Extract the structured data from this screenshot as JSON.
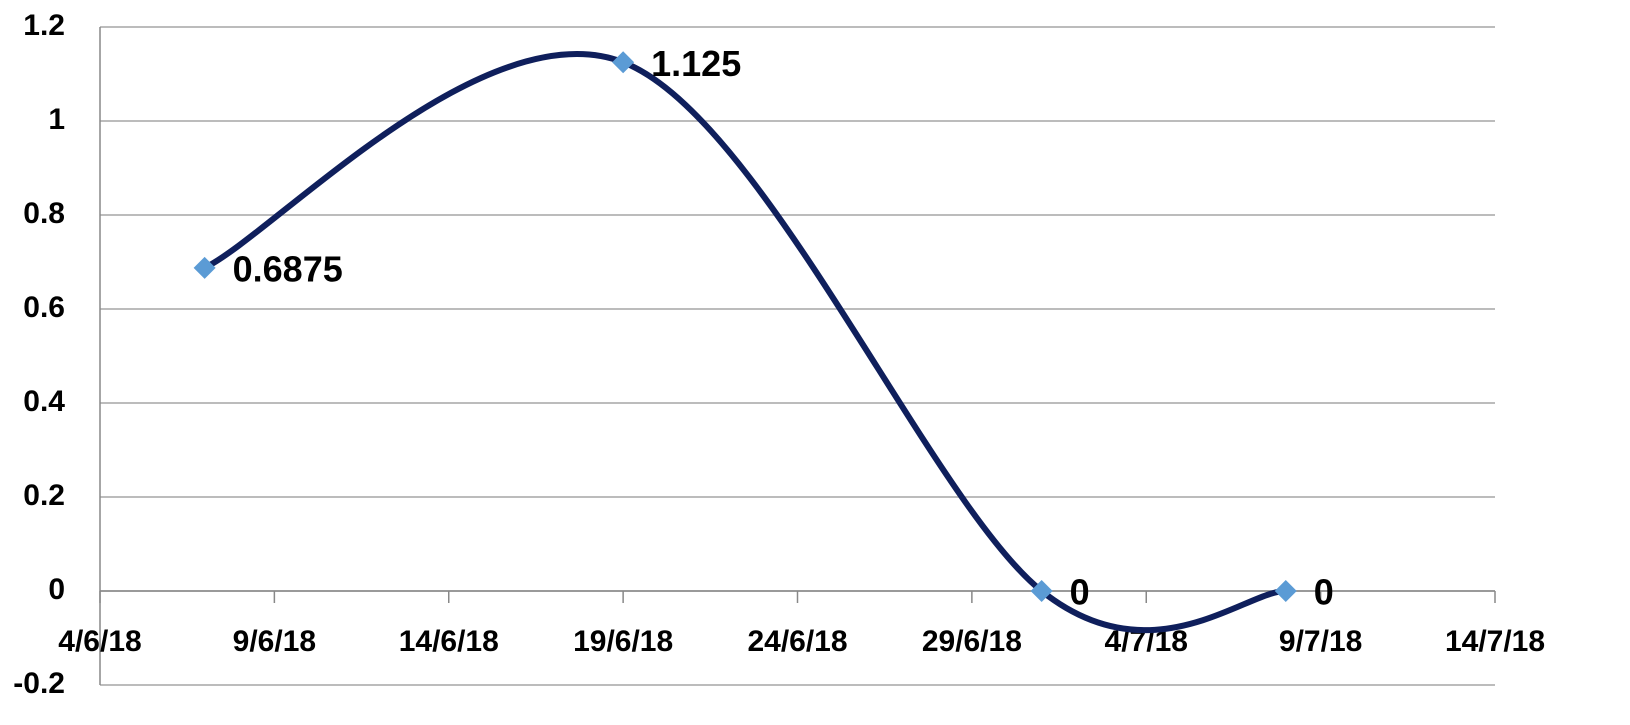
{
  "chart_data": {
    "type": "line",
    "x": [
      "2018-06-07",
      "2018-06-19",
      "2018-07-01",
      "2018-07-08"
    ],
    "series": [
      {
        "color": "#0f1f5c",
        "marker_color": "#5b9bd5",
        "values": [
          0.6875,
          1.125,
          0,
          0
        ],
        "value_labels": [
          "0.6875",
          "1.125",
          "0",
          "0"
        ]
      }
    ],
    "smooth": true,
    "xlim": [
      "2018-06-04",
      "2018-07-14"
    ],
    "xticks": [
      {
        "value": "2018-06-04",
        "label": "4/6/18"
      },
      {
        "value": "2018-06-09",
        "label": "9/6/18"
      },
      {
        "value": "2018-06-14",
        "label": "14/6/18"
      },
      {
        "value": "2018-06-19",
        "label": "19/6/18"
      },
      {
        "value": "2018-06-24",
        "label": "24/6/18"
      },
      {
        "value": "2018-06-29",
        "label": "29/6/18"
      },
      {
        "value": "2018-07-04",
        "label": "4/7/18"
      },
      {
        "value": "2018-07-09",
        "label": "9/7/18"
      },
      {
        "value": "2018-07-14",
        "label": "14/7/18"
      }
    ],
    "ylim": [
      -0.2,
      1.2
    ],
    "yticks": [
      -0.2,
      0,
      0.2,
      0.4,
      0.6,
      0.8,
      1,
      1.2
    ],
    "grid": true
  }
}
